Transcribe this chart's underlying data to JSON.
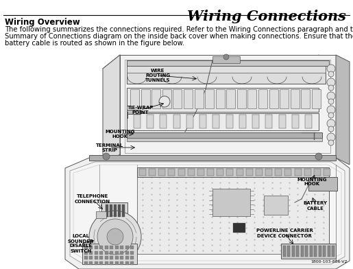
{
  "title": "Wiring Connections",
  "section_heading": "Wiring Overview",
  "body_line1": "The following summarizes the connections required. Refer to the Wiring Connections paragraph and the",
  "body_line2": "Summary of Connections diagram on the inside back cover when making connections. Ensure that the",
  "body_line3": "battery cable is routed as shown in the figure below.",
  "part_number": "1800-103-806-V2",
  "bg_color": "#ffffff",
  "text_color": "#000000",
  "border_color": "#888888",
  "label_fontsize": 5.0,
  "title_fontsize": 15,
  "heading_fontsize": 8.5,
  "body_fontsize": 7.2
}
